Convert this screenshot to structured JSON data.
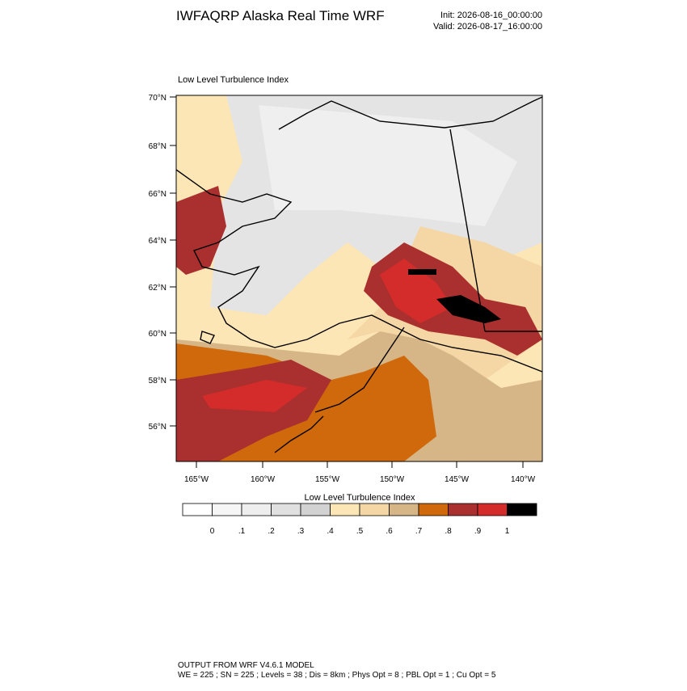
{
  "header": {
    "title": "IWFAQRP Alaska Real Time WRF",
    "init": "Init: 2026-08-16_00:00:00",
    "valid": "Valid: 2026-08-17_16:00:00"
  },
  "map": {
    "title": "Low Level Turbulence Index",
    "lat_labels": [
      "70°N",
      "68°N",
      "66°N",
      "64°N",
      "62°N",
      "60°N",
      "58°N",
      "56°N"
    ],
    "lon_labels": [
      "165°W",
      "160°W",
      "155°W",
      "150°W",
      "145°W",
      "140°W"
    ]
  },
  "colorbar": {
    "title": "Low Level Turbulence Index",
    "colors": [
      "#ffffff",
      "#f6f6f6",
      "#eeeeee",
      "#e0e0e0",
      "#d2d2d2",
      "#fde6b6",
      "#f4d7a4",
      "#d6b587",
      "#d0690b",
      "#a9302f",
      "#d42b2b",
      "#000000"
    ],
    "ticks": [
      0,
      {
        "value": 0.1,
        "label": ".1"
      },
      {
        "value": 0.2,
        "label": ".2"
      },
      {
        "value": 0.3,
        "label": ".3"
      },
      {
        "value": 0.4,
        "label": ".4"
      },
      {
        "value": 0.5,
        "label": ".5"
      },
      {
        "value": 0.6,
        "label": ".6"
      },
      {
        "value": 0.7,
        "label": ".7"
      },
      {
        "value": 0.8,
        "label": ".8"
      },
      {
        "value": 0.9,
        "label": ".9"
      },
      1
    ]
  },
  "footer": {
    "line1": "OUTPUT FROM WRF V4.6.1 MODEL",
    "line2": "WE = 225 ; SN = 225 ; Levels = 38 ; Dis = 8km ; Phys Opt = 8 ; PBL Opt = 1 ; Cu Opt = 5"
  }
}
